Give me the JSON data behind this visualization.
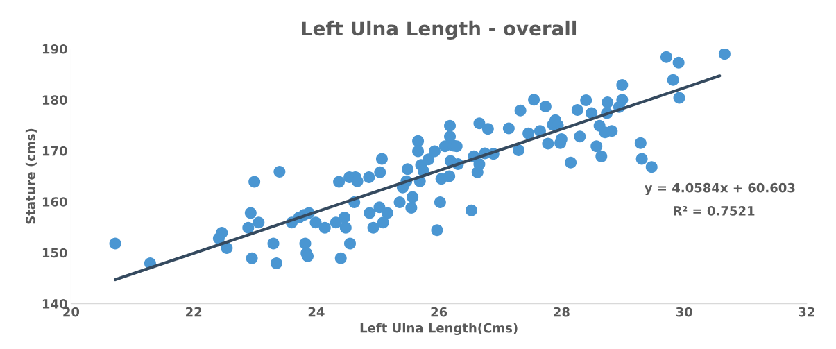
{
  "chart_data": {
    "type": "scatter",
    "title": "Left Ulna Length - overall",
    "xlabel": "Left Ulna Length(Cms)",
    "ylabel": "Stature (cms)",
    "xlim": [
      20,
      32
    ],
    "xticks": [
      20,
      22,
      24,
      26,
      28,
      30,
      32
    ],
    "ylim": [
      140,
      190
    ],
    "yticks": [
      140,
      150,
      160,
      170,
      180,
      190
    ],
    "grid": false,
    "legend": false,
    "series": [
      {
        "marker": "circle",
        "color": "#4a96d2",
        "x": [
          20.72,
          21.29,
          22.46,
          22.41,
          22.54,
          22.99,
          22.93,
          22.89,
          23.06,
          22.95,
          23.3,
          23.35,
          23.4,
          23.6,
          23.72,
          23.8,
          23.88,
          23.99,
          24.14,
          23.82,
          23.84,
          23.86,
          24.32,
          24.46,
          24.48,
          24.4,
          24.55,
          24.37,
          24.54,
          24.64,
          24.67,
          24.62,
          24.86,
          24.87,
          24.93,
          25.03,
          25.16,
          25.09,
          25.04,
          25.07,
          25.36,
          25.49,
          25.47,
          25.41,
          25.57,
          25.55,
          25.71,
          25.75,
          25.69,
          25.66,
          25.66,
          25.83,
          25.93,
          26.04,
          26.17,
          26.02,
          25.97,
          26.1,
          26.18,
          26.18,
          26.24,
          26.29,
          26.19,
          26.31,
          26.53,
          26.57,
          26.66,
          26.63,
          26.66,
          26.8,
          26.75,
          26.89,
          27.14,
          27.3,
          27.33,
          27.55,
          27.74,
          27.46,
          27.65,
          27.78,
          29.71,
          29.91,
          30.66,
          29.82,
          29.92,
          28.99,
          28.99,
          28.94,
          28.75,
          28.74,
          28.4,
          28.26,
          28.49,
          28.62,
          28.71,
          28.82,
          28.57,
          28.65,
          29.29,
          29.31,
          29.47,
          28.15,
          28.3,
          27.98,
          28.0,
          27.9,
          27.86,
          27.94
        ],
        "values": [
          151.8,
          147.9,
          153.9,
          152.8,
          150.9,
          163.9,
          157.8,
          154.9,
          155.9,
          148.9,
          151.8,
          147.9,
          165.9,
          155.9,
          156.9,
          157.4,
          157.8,
          155.9,
          154.9,
          151.8,
          149.9,
          149.3,
          155.9,
          156.9,
          154.9,
          148.9,
          151.8,
          163.9,
          164.8,
          164.8,
          164.0,
          159.9,
          164.8,
          157.8,
          154.9,
          158.9,
          157.8,
          155.9,
          165.8,
          168.4,
          159.9,
          166.4,
          164.0,
          162.8,
          160.9,
          158.8,
          167.2,
          166.0,
          164.0,
          171.9,
          169.9,
          168.3,
          169.9,
          164.5,
          165.0,
          159.9,
          154.4,
          170.9,
          174.9,
          172.8,
          171.0,
          170.9,
          168.0,
          167.4,
          158.3,
          168.9,
          167.4,
          165.8,
          175.4,
          174.3,
          169.5,
          169.4,
          174.4,
          170.1,
          177.9,
          180.0,
          178.7,
          173.4,
          173.9,
          171.4,
          188.4,
          187.3,
          189.0,
          183.9,
          180.4,
          182.9,
          180.0,
          178.6,
          179.5,
          177.4,
          179.9,
          178.0,
          177.4,
          174.9,
          173.6,
          173.9,
          170.9,
          168.9,
          171.5,
          168.4,
          166.8,
          167.7,
          172.8,
          171.5,
          172.3,
          176.0,
          175.1,
          175.0
        ]
      },
      {
        "type": "line",
        "color": "#354a5f",
        "x": [
          20.72,
          30.58
        ],
        "values": [
          144.7,
          184.7
        ],
        "marker": "none"
      }
    ],
    "annotations": [
      "y = 4.0584x + 60.603",
      "R² = 0.7521"
    ]
  }
}
